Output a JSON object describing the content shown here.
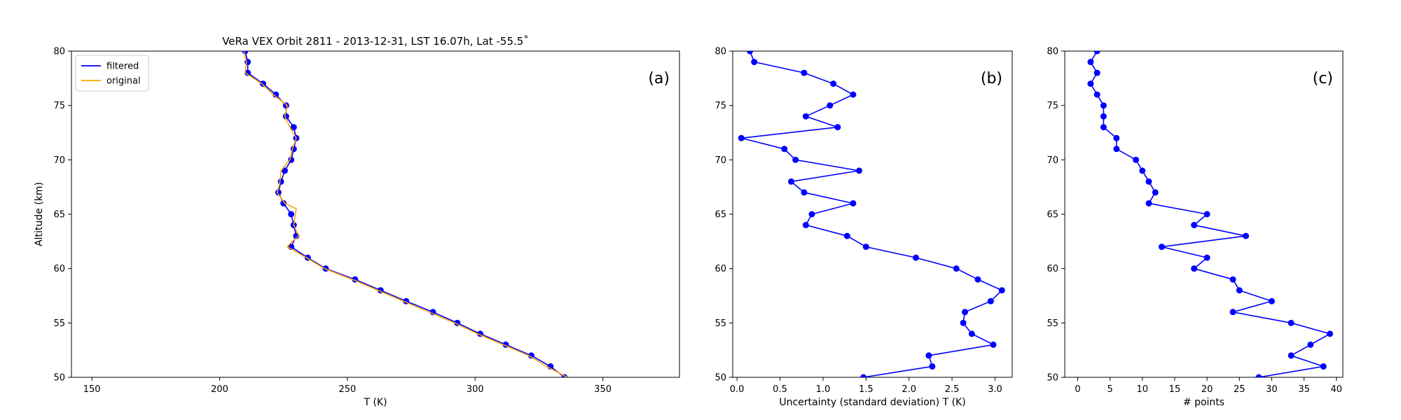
{
  "chart_data": [
    {
      "type": "line",
      "panel_label": "(a)",
      "title": "VeRa VEX Orbit 2811 - 2013-12-31, LST 16.07h, Lat -55.5˚",
      "xlabel": "T (K)",
      "ylabel": "Altitude (km)",
      "xlim": [
        142,
        380
      ],
      "ylim": [
        50,
        80
      ],
      "xticks": [
        150,
        200,
        250,
        300,
        350
      ],
      "yticks": [
        50,
        55,
        60,
        65,
        70,
        75,
        80
      ],
      "legend_position": "top-left",
      "series": [
        {
          "name": "filtered",
          "color": "#0000ff",
          "markers": true,
          "points": [
            [
              335,
              50
            ],
            [
              329.5,
              51
            ],
            [
              322,
              52
            ],
            [
              312,
              53
            ],
            [
              302,
              54
            ],
            [
              293,
              55
            ],
            [
              283.5,
              56
            ],
            [
              273,
              57
            ],
            [
              263,
              58
            ],
            [
              253,
              59
            ],
            [
              241.5,
              60
            ],
            [
              234.5,
              61
            ],
            [
              228,
              62
            ],
            [
              230,
              63
            ],
            [
              229,
              64
            ],
            [
              228,
              65
            ],
            [
              225,
              66
            ],
            [
              223,
              67
            ],
            [
              224,
              68
            ],
            [
              225.5,
              69
            ],
            [
              228,
              70
            ],
            [
              229,
              71
            ],
            [
              230,
              72
            ],
            [
              229,
              73
            ],
            [
              226,
              74
            ],
            [
              226,
              75
            ],
            [
              222,
              76
            ],
            [
              217,
              77
            ],
            [
              211,
              78
            ],
            [
              211,
              79
            ],
            [
              210,
              80
            ]
          ]
        },
        {
          "name": "original",
          "color": "#ffa500",
          "markers": false,
          "points": [
            [
              336,
              50
            ],
            [
              328,
              51
            ],
            [
              321,
              52
            ],
            [
              311,
              53
            ],
            [
              301,
              54
            ],
            [
              292,
              55
            ],
            [
              282,
              56
            ],
            [
              272,
              57
            ],
            [
              262,
              58
            ],
            [
              252,
              59
            ],
            [
              241,
              60
            ],
            [
              234,
              61
            ],
            [
              226.5,
              62
            ],
            [
              228,
              62.4
            ],
            [
              231,
              63
            ],
            [
              229,
              64
            ],
            [
              230,
              65.5
            ],
            [
              225.5,
              66
            ],
            [
              222.5,
              67
            ],
            [
              223.5,
              67.8
            ],
            [
              224,
              69
            ],
            [
              227.5,
              70
            ],
            [
              228.5,
              71
            ],
            [
              230,
              72
            ],
            [
              227.5,
              73
            ],
            [
              225.5,
              74
            ],
            [
              226.5,
              75
            ],
            [
              221,
              76
            ],
            [
              216.5,
              77
            ],
            [
              210,
              78
            ],
            [
              210.5,
              79
            ],
            [
              209.5,
              80
            ]
          ]
        }
      ]
    },
    {
      "type": "line",
      "panel_label": "(b)",
      "xlabel": "Uncertainty (standard deviation) T (K)",
      "ylabel": "",
      "xlim": [
        -0.05,
        3.2
      ],
      "ylim": [
        50,
        80
      ],
      "xticks": [
        0.0,
        0.5,
        1.0,
        1.5,
        2.0,
        2.5,
        3.0
      ],
      "xtick_labels": [
        "0.0",
        "0.5",
        "1.0",
        "1.5",
        "2.0",
        "2.5",
        "3.0"
      ],
      "yticks": [
        50,
        55,
        60,
        65,
        70,
        75,
        80
      ],
      "series": [
        {
          "color": "#0000ff",
          "markers": true,
          "points": [
            [
              1.47,
              50
            ],
            [
              2.27,
              51
            ],
            [
              2.23,
              52
            ],
            [
              2.98,
              53
            ],
            [
              2.73,
              54
            ],
            [
              2.63,
              55
            ],
            [
              2.65,
              56
            ],
            [
              2.95,
              57
            ],
            [
              3.08,
              58
            ],
            [
              2.8,
              59
            ],
            [
              2.55,
              60
            ],
            [
              2.08,
              61
            ],
            [
              1.5,
              62
            ],
            [
              1.28,
              63
            ],
            [
              0.8,
              64
            ],
            [
              0.87,
              65
            ],
            [
              1.35,
              66
            ],
            [
              0.78,
              67
            ],
            [
              0.63,
              68
            ],
            [
              1.42,
              69
            ],
            [
              0.68,
              70
            ],
            [
              0.55,
              71
            ],
            [
              0.05,
              72
            ],
            [
              1.17,
              73
            ],
            [
              0.8,
              74
            ],
            [
              1.08,
              75
            ],
            [
              1.35,
              76
            ],
            [
              1.12,
              77
            ],
            [
              0.78,
              78
            ],
            [
              0.2,
              79
            ],
            [
              0.15,
              80
            ]
          ]
        }
      ]
    },
    {
      "type": "line",
      "panel_label": "(c)",
      "xlabel": "# points",
      "ylabel": "",
      "xlim": [
        -2,
        41
      ],
      "ylim": [
        50,
        80
      ],
      "xticks": [
        0,
        5,
        10,
        15,
        20,
        25,
        30,
        35,
        40
      ],
      "yticks": [
        50,
        55,
        60,
        65,
        70,
        75,
        80
      ],
      "series": [
        {
          "color": "#0000ff",
          "markers": true,
          "points": [
            [
              28,
              50
            ],
            [
              38,
              51
            ],
            [
              33,
              52
            ],
            [
              36,
              53
            ],
            [
              39,
              54
            ],
            [
              33,
              55
            ],
            [
              24,
              56
            ],
            [
              30,
              57
            ],
            [
              25,
              58
            ],
            [
              24,
              59
            ],
            [
              18,
              60
            ],
            [
              20,
              61
            ],
            [
              13,
              62
            ],
            [
              26,
              63
            ],
            [
              18,
              64
            ],
            [
              20,
              65
            ],
            [
              11,
              66
            ],
            [
              12,
              67
            ],
            [
              11,
              68
            ],
            [
              10,
              69
            ],
            [
              9,
              70
            ],
            [
              6,
              71
            ],
            [
              6,
              72
            ],
            [
              4,
              73
            ],
            [
              4,
              74
            ],
            [
              4,
              75
            ],
            [
              3,
              76
            ],
            [
              2,
              77
            ],
            [
              3,
              78
            ],
            [
              2,
              79
            ],
            [
              3,
              80
            ]
          ]
        }
      ]
    }
  ]
}
